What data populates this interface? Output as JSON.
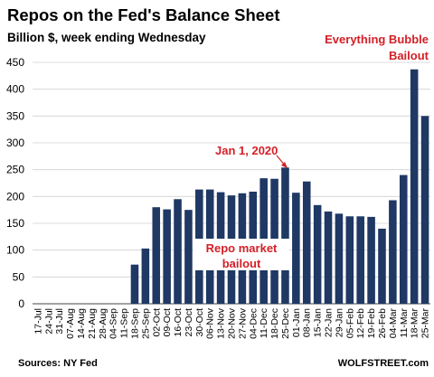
{
  "chart_data": {
    "type": "bar",
    "title": "Repos on the Fed's Balance Sheet",
    "subtitle": "Billion $, week ending Wednesday",
    "categories": [
      "17-Jul",
      "24-Jul",
      "31-Jul",
      "07-Aug",
      "14-Aug",
      "21-Aug",
      "28-Aug",
      "04-Sep",
      "11-Sep",
      "18-Sep",
      "25-Sep",
      "02-Oct",
      "09-Oct",
      "16-Oct",
      "23-Oct",
      "30-Oct",
      "06-Nov",
      "13-Nov",
      "20-Nov",
      "27-Nov",
      "04-Dec",
      "11-Dec",
      "18-Dec",
      "25-Dec",
      "01-Jan",
      "08-Jan",
      "15-Jan",
      "22-Jan",
      "29-Jan",
      "05-Feb",
      "12-Feb",
      "19-Feb",
      "26-Feb",
      "04-Mar",
      "11-Mar",
      "18-Mar",
      "25-Mar"
    ],
    "values": [
      0,
      0,
      0,
      0,
      0,
      0,
      0,
      0,
      0,
      73,
      103,
      180,
      176,
      195,
      175,
      213,
      213,
      208,
      202,
      206,
      209,
      234,
      233,
      254,
      207,
      228,
      184,
      172,
      168,
      163,
      163,
      162,
      140,
      193,
      240,
      437,
      350
    ],
    "ylim": [
      0,
      450
    ],
    "yticks": [
      0,
      50,
      100,
      150,
      200,
      250,
      300,
      350,
      400,
      450
    ],
    "grid": true,
    "bar_color": "#1f3864",
    "annotations": [
      {
        "lines": [
          "Everything Bubble",
          "Bailout"
        ]
      },
      {
        "lines": [
          "Jan 1, 2020"
        ]
      },
      {
        "lines": [
          "Repo market",
          "bailout"
        ]
      }
    ],
    "source": "Sources: NY Fed",
    "brand": "WOLFSTREET.com",
    "accent_color": "#d32027"
  }
}
